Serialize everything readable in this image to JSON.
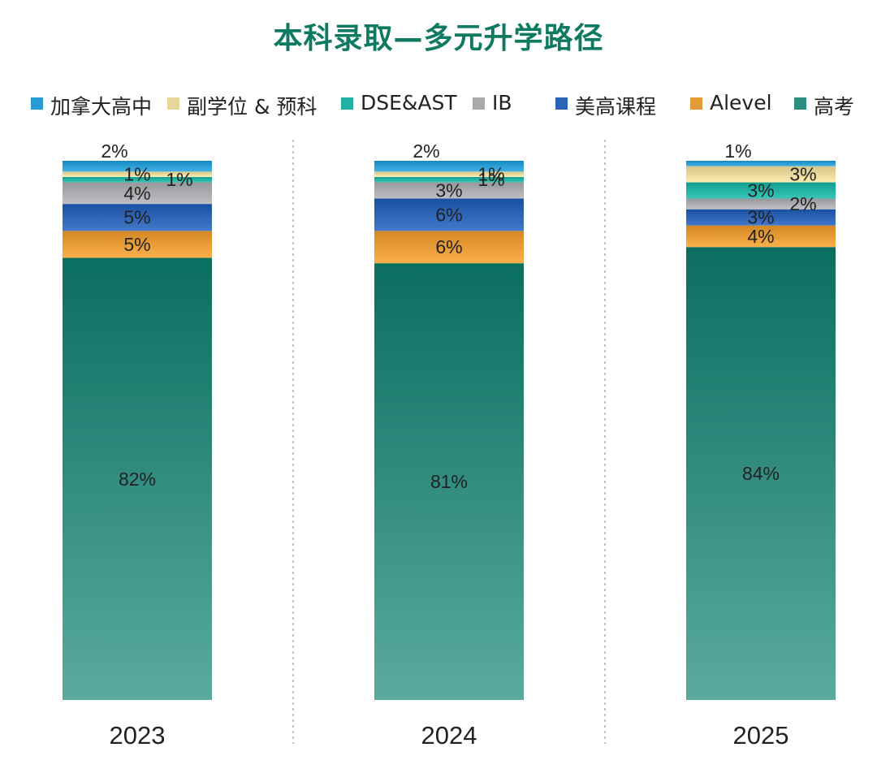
{
  "chart_data": {
    "type": "bar",
    "stacked": true,
    "title": "本科录取—多元升学路径",
    "categories": [
      "2023",
      "2024",
      "2025"
    ],
    "legend_position": "top",
    "series": [
      {
        "name": "高考",
        "values": [
          82,
          81,
          84
        ],
        "labels": [
          "82%",
          "81%",
          "84%"
        ],
        "color": "#2a8f80"
      },
      {
        "name": "Alevel",
        "values": [
          5,
          6,
          4
        ],
        "labels": [
          "5%",
          "6%",
          "4%"
        ],
        "color": "#e59a35"
      },
      {
        "name": "美高课程",
        "values": [
          5,
          6,
          3
        ],
        "labels": [
          "5%",
          "6%",
          "3%"
        ],
        "color": "#2d63b5"
      },
      {
        "name": "IB",
        "values": [
          4,
          3,
          2
        ],
        "labels": [
          "4%",
          "3%",
          "2%"
        ],
        "color": "#a9aaae"
      },
      {
        "name": "DSE&AST",
        "values": [
          1,
          1,
          3
        ],
        "labels": [
          "1%",
          "1%",
          "3%"
        ],
        "color": "#22b0a2"
      },
      {
        "name": "副学位 & 预科",
        "values": [
          1,
          1,
          3
        ],
        "labels": [
          "1%",
          "1%",
          "3%"
        ],
        "color": "#e6d69a"
      },
      {
        "name": "加拿大高中",
        "values": [
          2,
          2,
          1
        ],
        "labels": [
          "2%",
          "2%",
          "1%"
        ],
        "color": "#2a9bd1"
      }
    ]
  }
}
